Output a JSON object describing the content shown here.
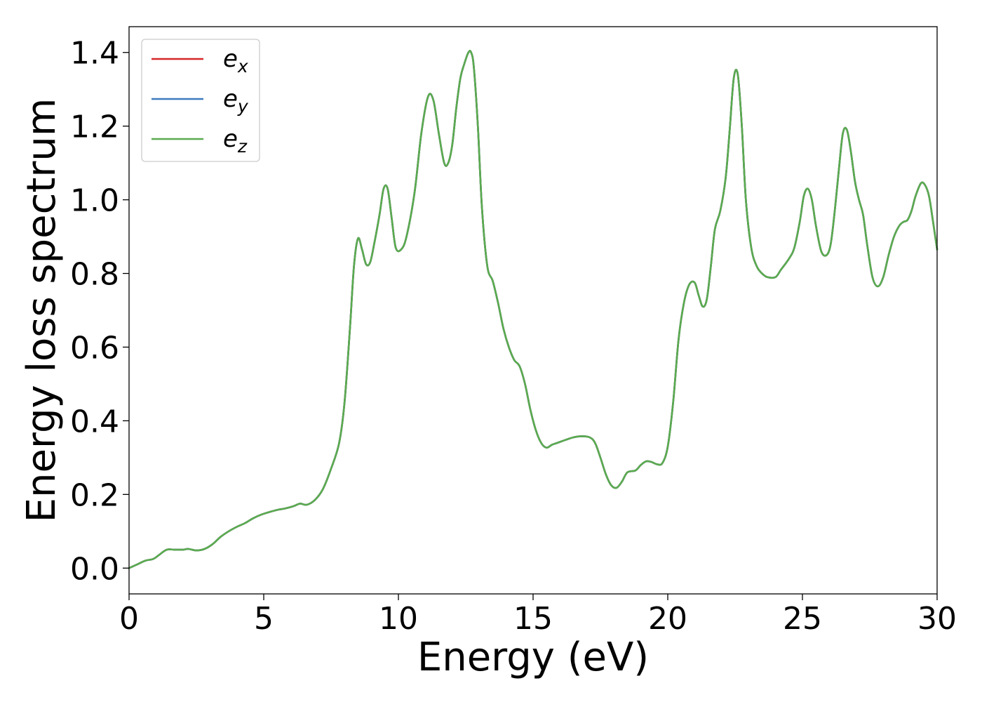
{
  "chart_data": {
    "type": "line",
    "title": "",
    "xlabel": "Energy (eV)",
    "ylabel": "Energy loss spectrum",
    "xlim": [
      0,
      30
    ],
    "ylim": [
      -0.07,
      1.47
    ],
    "xticks": [
      0,
      5,
      10,
      15,
      20,
      25,
      30
    ],
    "yticks": [
      0.0,
      0.2,
      0.4,
      0.6,
      0.8,
      1.0,
      1.2,
      1.4
    ],
    "xtick_labels": [
      "0",
      "5",
      "10",
      "15",
      "20",
      "25",
      "30"
    ],
    "ytick_labels": [
      "0.0",
      "0.2",
      "0.4",
      "0.6",
      "0.8",
      "1.0",
      "1.2",
      "1.4"
    ],
    "grid": false,
    "legend_position": "top-left",
    "x": [
      0,
      0.3,
      0.6,
      0.9,
      1.1,
      1.4,
      1.7,
      2.0,
      2.2,
      2.5,
      2.8,
      3.1,
      3.4,
      3.7,
      4.0,
      4.3,
      4.6,
      4.9,
      5.2,
      5.5,
      5.8,
      6.1,
      6.35,
      6.6,
      6.9,
      7.2,
      7.5,
      7.8,
      8.0,
      8.2,
      8.35,
      8.5,
      8.65,
      8.8,
      8.95,
      9.1,
      9.3,
      9.45,
      9.6,
      9.75,
      9.9,
      10.1,
      10.3,
      10.6,
      10.85,
      11.1,
      11.3,
      11.5,
      11.7,
      11.85,
      12.0,
      12.15,
      12.3,
      12.45,
      12.6,
      12.7,
      12.8,
      12.95,
      13.1,
      13.3,
      13.5,
      13.7,
      13.9,
      14.1,
      14.3,
      14.5,
      14.7,
      14.9,
      15.1,
      15.3,
      15.5,
      15.7,
      15.9,
      16.2,
      16.5,
      16.8,
      17.1,
      17.3,
      17.5,
      17.7,
      17.9,
      18.1,
      18.3,
      18.5,
      18.8,
      19.0,
      19.2,
      19.4,
      19.6,
      19.8,
      20.0,
      20.2,
      20.4,
      20.6,
      20.8,
      21.0,
      21.15,
      21.3,
      21.45,
      21.6,
      21.75,
      21.95,
      22.15,
      22.3,
      22.45,
      22.6,
      22.75,
      22.9,
      23.1,
      23.3,
      23.5,
      23.7,
      24.0,
      24.2,
      24.5,
      24.7,
      24.9,
      25.05,
      25.2,
      25.35,
      25.5,
      25.7,
      25.9,
      26.05,
      26.2,
      26.35,
      26.5,
      26.65,
      26.8,
      26.95,
      27.1,
      27.25,
      27.4,
      27.6,
      27.8,
      28.0,
      28.2,
      28.4,
      28.6,
      28.75,
      28.9,
      29.05,
      29.2,
      29.4,
      29.55,
      29.7,
      29.85,
      30.0
    ],
    "series": [
      {
        "name": "e_x",
        "color": "#d62728",
        "values": [
          0.0,
          0.01,
          0.02,
          0.025,
          0.035,
          0.05,
          0.05,
          0.05,
          0.052,
          0.048,
          0.052,
          0.065,
          0.085,
          0.1,
          0.112,
          0.122,
          0.135,
          0.145,
          0.152,
          0.158,
          0.162,
          0.168,
          0.175,
          0.172,
          0.185,
          0.215,
          0.27,
          0.34,
          0.45,
          0.65,
          0.82,
          0.895,
          0.865,
          0.825,
          0.83,
          0.88,
          0.96,
          1.03,
          1.03,
          0.95,
          0.87,
          0.865,
          0.9,
          1.02,
          1.18,
          1.28,
          1.27,
          1.18,
          1.1,
          1.1,
          1.15,
          1.25,
          1.33,
          1.37,
          1.4,
          1.4,
          1.36,
          1.2,
          0.98,
          0.82,
          0.78,
          0.72,
          0.65,
          0.6,
          0.565,
          0.548,
          0.5,
          0.43,
          0.375,
          0.34,
          0.327,
          0.335,
          0.34,
          0.348,
          0.355,
          0.358,
          0.355,
          0.34,
          0.3,
          0.255,
          0.225,
          0.218,
          0.235,
          0.26,
          0.265,
          0.28,
          0.29,
          0.288,
          0.282,
          0.285,
          0.33,
          0.45,
          0.62,
          0.72,
          0.77,
          0.775,
          0.74,
          0.71,
          0.73,
          0.82,
          0.92,
          0.97,
          1.06,
          1.19,
          1.33,
          1.34,
          1.2,
          1.0,
          0.87,
          0.82,
          0.8,
          0.79,
          0.79,
          0.81,
          0.84,
          0.87,
          0.94,
          1.01,
          1.03,
          1.0,
          0.93,
          0.86,
          0.85,
          0.88,
          0.97,
          1.08,
          1.18,
          1.19,
          1.13,
          1.05,
          1.0,
          0.96,
          0.88,
          0.79,
          0.765,
          0.79,
          0.85,
          0.9,
          0.93,
          0.94,
          0.945,
          0.97,
          1.01,
          1.045,
          1.04,
          1.01,
          0.94,
          0.865
        ]
      },
      {
        "name": "e_y",
        "color": "#3b7bbf",
        "values": [
          0.0,
          0.01,
          0.02,
          0.025,
          0.035,
          0.05,
          0.05,
          0.05,
          0.052,
          0.048,
          0.052,
          0.065,
          0.085,
          0.1,
          0.112,
          0.122,
          0.135,
          0.145,
          0.152,
          0.158,
          0.162,
          0.168,
          0.175,
          0.172,
          0.185,
          0.215,
          0.27,
          0.34,
          0.45,
          0.65,
          0.82,
          0.895,
          0.865,
          0.825,
          0.83,
          0.88,
          0.96,
          1.03,
          1.03,
          0.95,
          0.87,
          0.865,
          0.9,
          1.02,
          1.18,
          1.28,
          1.27,
          1.18,
          1.1,
          1.1,
          1.15,
          1.25,
          1.33,
          1.37,
          1.4,
          1.4,
          1.36,
          1.2,
          0.98,
          0.82,
          0.78,
          0.72,
          0.65,
          0.6,
          0.565,
          0.548,
          0.5,
          0.43,
          0.375,
          0.34,
          0.327,
          0.335,
          0.34,
          0.348,
          0.355,
          0.358,
          0.355,
          0.34,
          0.3,
          0.255,
          0.225,
          0.218,
          0.235,
          0.26,
          0.265,
          0.28,
          0.29,
          0.288,
          0.282,
          0.285,
          0.33,
          0.45,
          0.62,
          0.72,
          0.77,
          0.775,
          0.74,
          0.71,
          0.73,
          0.82,
          0.92,
          0.97,
          1.06,
          1.19,
          1.33,
          1.34,
          1.2,
          1.0,
          0.87,
          0.82,
          0.8,
          0.79,
          0.79,
          0.81,
          0.84,
          0.87,
          0.94,
          1.01,
          1.03,
          1.0,
          0.93,
          0.86,
          0.85,
          0.88,
          0.97,
          1.08,
          1.18,
          1.19,
          1.13,
          1.05,
          1.0,
          0.96,
          0.88,
          0.79,
          0.765,
          0.79,
          0.85,
          0.9,
          0.93,
          0.94,
          0.945,
          0.97,
          1.01,
          1.045,
          1.04,
          1.01,
          0.94,
          0.865
        ]
      },
      {
        "name": "e_z",
        "color": "#5aab4f",
        "values": [
          0.0,
          0.01,
          0.02,
          0.025,
          0.035,
          0.05,
          0.05,
          0.05,
          0.052,
          0.048,
          0.052,
          0.065,
          0.085,
          0.1,
          0.112,
          0.122,
          0.135,
          0.145,
          0.152,
          0.158,
          0.162,
          0.168,
          0.175,
          0.172,
          0.185,
          0.215,
          0.27,
          0.34,
          0.45,
          0.65,
          0.82,
          0.895,
          0.865,
          0.825,
          0.83,
          0.88,
          0.96,
          1.03,
          1.03,
          0.95,
          0.87,
          0.865,
          0.9,
          1.02,
          1.18,
          1.28,
          1.27,
          1.18,
          1.1,
          1.1,
          1.15,
          1.25,
          1.33,
          1.37,
          1.4,
          1.4,
          1.36,
          1.2,
          0.98,
          0.82,
          0.78,
          0.72,
          0.65,
          0.6,
          0.565,
          0.548,
          0.5,
          0.43,
          0.375,
          0.34,
          0.327,
          0.335,
          0.34,
          0.348,
          0.355,
          0.358,
          0.355,
          0.34,
          0.3,
          0.255,
          0.225,
          0.218,
          0.235,
          0.26,
          0.265,
          0.28,
          0.29,
          0.288,
          0.282,
          0.285,
          0.33,
          0.45,
          0.62,
          0.72,
          0.77,
          0.775,
          0.74,
          0.71,
          0.73,
          0.82,
          0.92,
          0.97,
          1.06,
          1.19,
          1.33,
          1.34,
          1.2,
          1.0,
          0.87,
          0.82,
          0.8,
          0.79,
          0.79,
          0.81,
          0.84,
          0.87,
          0.94,
          1.01,
          1.03,
          1.0,
          0.93,
          0.86,
          0.85,
          0.88,
          0.97,
          1.08,
          1.18,
          1.19,
          1.13,
          1.05,
          1.0,
          0.96,
          0.88,
          0.79,
          0.765,
          0.79,
          0.85,
          0.9,
          0.93,
          0.94,
          0.945,
          0.97,
          1.01,
          1.045,
          1.04,
          1.01,
          0.94,
          0.865
        ]
      }
    ],
    "legend": [
      {
        "base": "e",
        "sub": "x",
        "color": "#d62728"
      },
      {
        "base": "e",
        "sub": "y",
        "color": "#3b7bbf"
      },
      {
        "base": "e",
        "sub": "z",
        "color": "#5aab4f"
      }
    ]
  }
}
